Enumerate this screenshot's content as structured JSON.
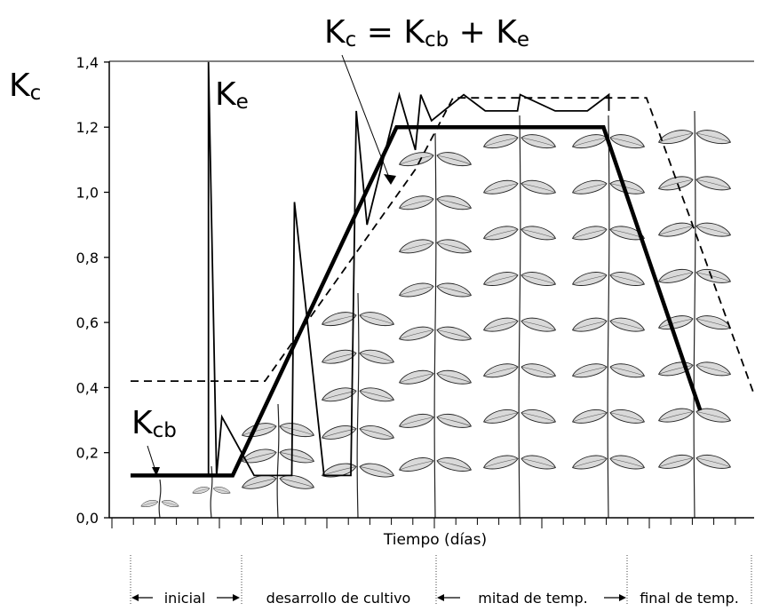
{
  "chart_data": {
    "type": "line",
    "title": "",
    "ylabel": "Kc",
    "xlabel": "Tiempo (días)",
    "ylim": [
      0,
      1.4
    ],
    "yticks": [
      "0,0",
      "0,2",
      "0,4",
      "0,6",
      "0,8",
      "1,0",
      "1,2",
      "1,4"
    ],
    "grid": false,
    "annotations": {
      "formula": {
        "main": "K",
        "sub1": "c",
        "eq": " = K",
        "sub2": "cb",
        "plus": " + K",
        "sub3": "e"
      },
      "ke": {
        "main": "K",
        "sub": "e"
      },
      "kcb": {
        "main": "K",
        "sub": "cb"
      },
      "ylabel": {
        "main": "K",
        "sub": "c"
      }
    },
    "stages": [
      "inicial",
      "desarrollo de cultivo",
      "mitad de temp.",
      "final de temp."
    ],
    "series": [
      {
        "key": "kcb",
        "style": "thick-solid",
        "color": "#000000",
        "points": [
          [
            0.0,
            0.13
          ],
          [
            1.9,
            0.13
          ],
          [
            4.95,
            1.2
          ],
          [
            8.8,
            1.2
          ],
          [
            10.6,
            0.33
          ]
        ]
      },
      {
        "key": "kc",
        "style": "dashed",
        "color": "#000000",
        "points": [
          [
            0.0,
            0.42
          ],
          [
            2.5,
            0.42
          ],
          [
            5.3,
            1.07
          ],
          [
            6.0,
            1.29
          ],
          [
            9.6,
            1.29
          ],
          [
            11.6,
            0.38
          ]
        ]
      },
      {
        "key": "ke",
        "style": "thin-solid",
        "color": "#000000",
        "points": [
          [
            1.45,
            0.13
          ],
          [
            1.45,
            1.4
          ],
          [
            1.6,
            0.13
          ],
          [
            1.7,
            0.31
          ],
          [
            2.3,
            0.13
          ],
          [
            3.0,
            0.13
          ],
          [
            3.05,
            0.97
          ],
          [
            3.6,
            0.13
          ],
          [
            4.1,
            0.13
          ],
          [
            4.2,
            1.25
          ],
          [
            4.4,
            0.9
          ],
          [
            5.0,
            1.3
          ],
          [
            5.3,
            1.13
          ],
          [
            5.4,
            1.3
          ],
          [
            5.6,
            1.22
          ],
          [
            6.2,
            1.3
          ],
          [
            6.6,
            1.25
          ],
          [
            7.2,
            1.25
          ],
          [
            7.25,
            1.3
          ],
          [
            7.9,
            1.25
          ],
          [
            8.5,
            1.25
          ],
          [
            8.9,
            1.3
          ],
          [
            8.9,
            1.25
          ]
        ]
      }
    ]
  }
}
